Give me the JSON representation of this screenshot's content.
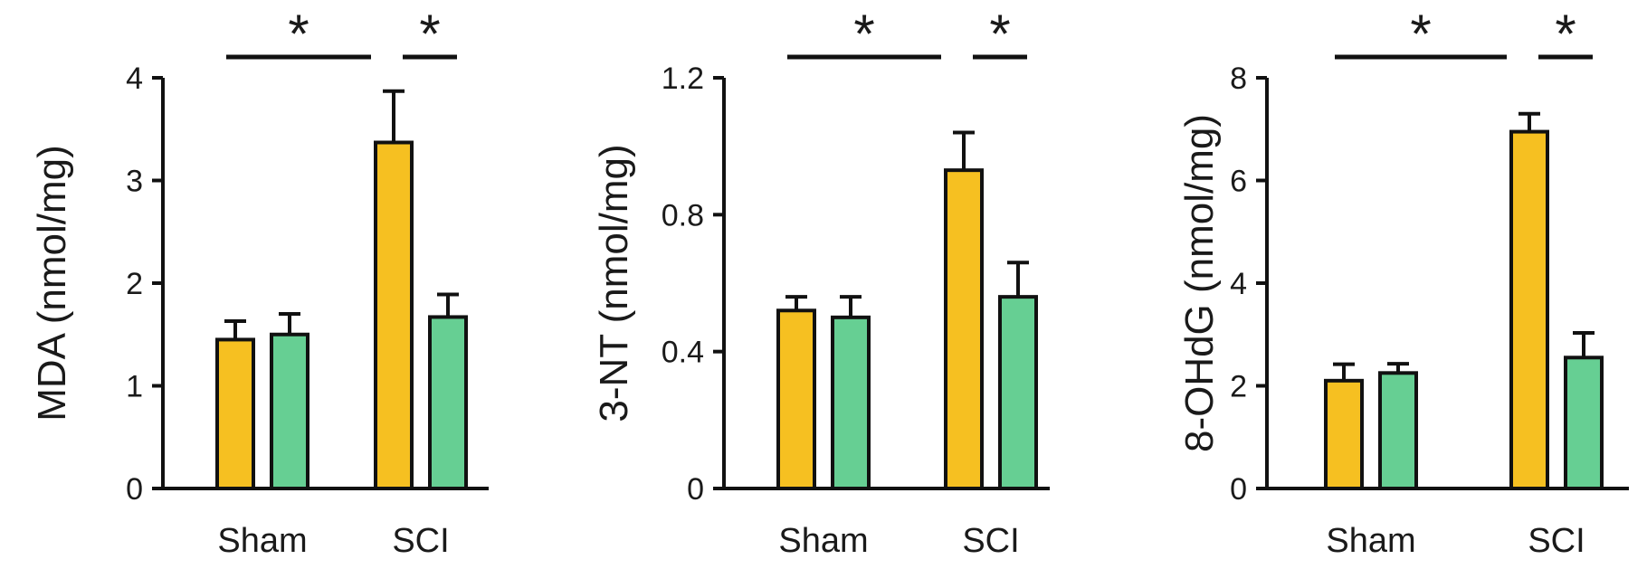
{
  "figure": {
    "bar_colors": {
      "yellow": "#f6c021",
      "green": "#66cf93"
    },
    "outline_color": "#111111"
  },
  "chart_data": [
    {
      "type": "bar",
      "categories": [
        "Sham",
        "SCI"
      ],
      "ylabel": "MDA (nmol/mg)",
      "ylim": [
        0,
        4
      ],
      "yticks": [
        0,
        1,
        2,
        3,
        4
      ],
      "ytick_labels": [
        "0",
        "1",
        "2",
        "3",
        "4"
      ],
      "grid": false,
      "series": [
        {
          "color": "#f6c021",
          "values": [
            1.45,
            3.37
          ],
          "errors": [
            0.18,
            0.5
          ]
        },
        {
          "color": "#66cf93",
          "values": [
            1.5,
            1.67
          ],
          "errors": [
            0.2,
            0.22
          ]
        }
      ],
      "significance": [
        {
          "label": "*",
          "from": "Sham",
          "to": "SCI-yellow"
        },
        {
          "label": "*",
          "from": "SCI-yellow",
          "to": "SCI-green"
        }
      ]
    },
    {
      "type": "bar",
      "categories": [
        "Sham",
        "SCI"
      ],
      "ylabel": "3-NT (nmol/mg)",
      "ylim": [
        0,
        1.2
      ],
      "yticks": [
        0,
        0.4,
        0.8,
        1.2
      ],
      "ytick_labels": [
        "0",
        "0.4",
        "0.8",
        "1.2"
      ],
      "grid": false,
      "series": [
        {
          "color": "#f6c021",
          "values": [
            0.52,
            0.93
          ],
          "errors": [
            0.04,
            0.11
          ]
        },
        {
          "color": "#66cf93",
          "values": [
            0.5,
            0.56
          ],
          "errors": [
            0.06,
            0.1
          ]
        }
      ],
      "significance": [
        {
          "label": "*",
          "from": "Sham",
          "to": "SCI-yellow"
        },
        {
          "label": "*",
          "from": "SCI-yellow",
          "to": "SCI-green"
        }
      ]
    },
    {
      "type": "bar",
      "categories": [
        "Sham",
        "SCI"
      ],
      "ylabel": "8-OHdG (nmol/mg)",
      "ylim": [
        0,
        8
      ],
      "yticks": [
        0,
        2,
        4,
        6,
        8
      ],
      "ytick_labels": [
        "0",
        "2",
        "4",
        "6",
        "8"
      ],
      "grid": false,
      "series": [
        {
          "color": "#f6c021",
          "values": [
            2.1,
            6.95
          ],
          "errors": [
            0.32,
            0.35
          ]
        },
        {
          "color": "#66cf93",
          "values": [
            2.25,
            2.55
          ],
          "errors": [
            0.18,
            0.48
          ]
        }
      ],
      "significance": [
        {
          "label": "*",
          "from": "Sham",
          "to": "SCI-yellow"
        },
        {
          "label": "*",
          "from": "SCI-yellow",
          "to": "SCI-green"
        }
      ]
    }
  ]
}
